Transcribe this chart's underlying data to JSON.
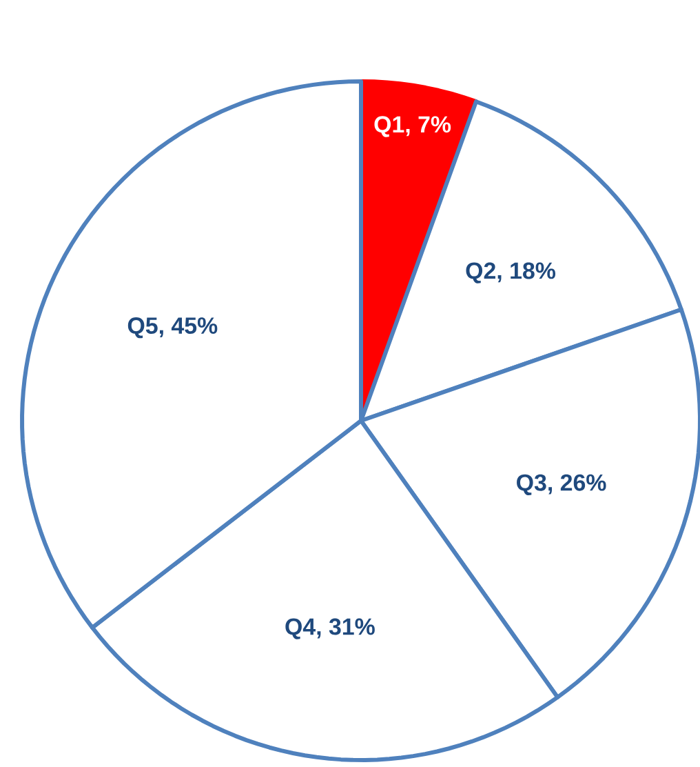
{
  "chart_data": {
    "type": "pie",
    "categories": [
      "Q1, 7%",
      "Q2, 18%",
      "Q3, 26%",
      "Q4, 31%",
      "Q5, 45%"
    ],
    "values": [
      7,
      18,
      26,
      31,
      45
    ],
    "colors": [
      "#ff0000",
      "#ffffff",
      "#ffffff",
      "#ffffff",
      "#ffffff"
    ]
  }
}
